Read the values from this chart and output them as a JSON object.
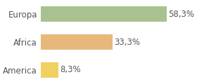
{
  "categories": [
    "America",
    "Africa",
    "Europa"
  ],
  "values": [
    8.3,
    33.3,
    58.3
  ],
  "labels": [
    "8,3%",
    "33,3%",
    "58,3%"
  ],
  "bar_colors": [
    "#f0d060",
    "#e8b87a",
    "#a8c18f"
  ],
  "xlim": [
    0,
    70
  ],
  "background_color": "#ffffff",
  "label_fontsize": 8.5,
  "tick_fontsize": 8.5
}
